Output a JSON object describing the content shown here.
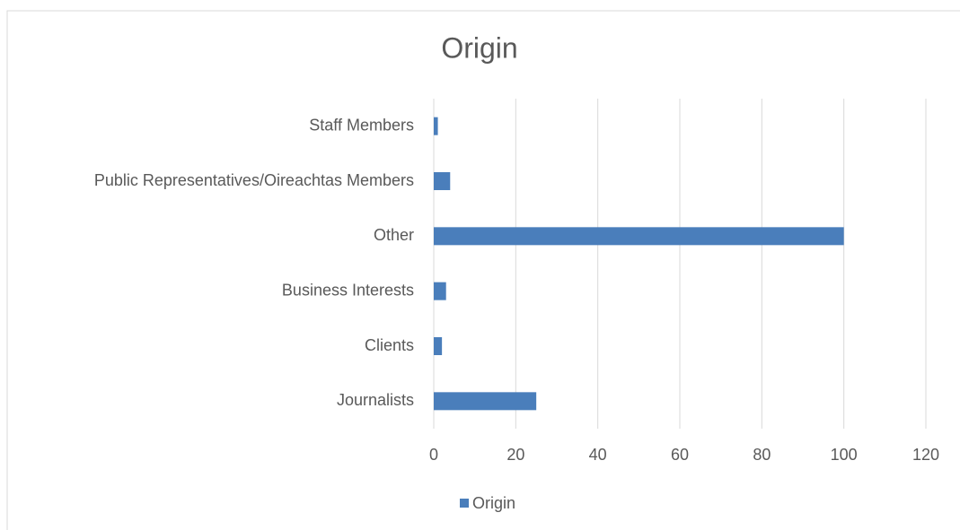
{
  "chart_data": {
    "type": "bar",
    "orientation": "horizontal",
    "title": "Origin",
    "categories": [
      "Staff Members",
      "Public Representatives/Oireachtas Members",
      "Other",
      "Business Interests",
      "Clients",
      "Journalists"
    ],
    "series": [
      {
        "name": "Origin",
        "color": "#4a7ebb",
        "values": [
          1,
          4,
          100,
          3,
          2,
          25
        ]
      }
    ],
    "xlim": [
      0,
      120
    ],
    "xticks": [
      0,
      20,
      40,
      60,
      80,
      100,
      120
    ],
    "grid": true,
    "legend": "bottom"
  }
}
